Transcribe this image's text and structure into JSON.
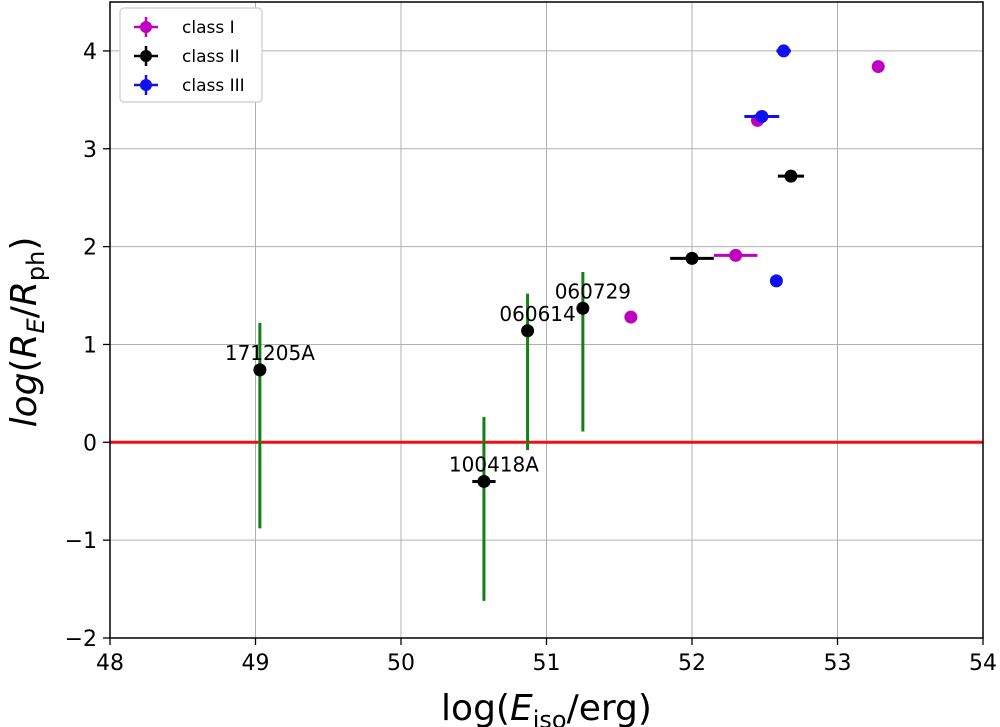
{
  "chart_data": {
    "type": "scatter",
    "xlabel": "log(E_iso/erg)",
    "ylabel": "log(R_E/R_ph)",
    "xlim": [
      48,
      54
    ],
    "ylim": [
      -2,
      4.5
    ],
    "x_ticks": [
      48,
      49,
      50,
      51,
      52,
      53,
      54
    ],
    "y_ticks": [
      -2,
      -1,
      0,
      1,
      2,
      3,
      4
    ],
    "grid": true,
    "legend_position": "top-left",
    "reference_line": {
      "y": 0,
      "color": "#ee1111"
    },
    "series": [
      {
        "name": "class I",
        "color": "#c000c0",
        "points": [
          {
            "x": 52.3,
            "y": 1.91,
            "xerr": 0.15,
            "yerr": 0.02
          },
          {
            "x": 52.45,
            "y": 3.29,
            "xerr": 0.0,
            "yerr": 0.0
          },
          {
            "x": 51.58,
            "y": 1.28,
            "xerr": 0.0,
            "yerr": 0.0
          },
          {
            "x": 53.28,
            "y": 3.84,
            "xerr": 0.0,
            "yerr": 0.0
          }
        ]
      },
      {
        "name": "class II",
        "color": "#000000",
        "points": [
          {
            "x": 49.03,
            "y": 0.74,
            "xerr": 0.0,
            "yerr": 0.0
          },
          {
            "x": 50.57,
            "y": -0.4,
            "xerr": 0.08,
            "yerr": 0.0
          },
          {
            "x": 50.87,
            "y": 1.14,
            "xerr": 0.0,
            "yerr": 0.0
          },
          {
            "x": 51.25,
            "y": 1.37,
            "xerr": 0.0,
            "yerr": 0.0
          },
          {
            "x": 52.0,
            "y": 1.88,
            "xerr": 0.15,
            "yerr": 0.0
          },
          {
            "x": 52.68,
            "y": 2.72,
            "xerr": 0.09,
            "yerr": 0.0
          }
        ]
      },
      {
        "name": "class III",
        "color": "#1010ee",
        "points": [
          {
            "x": 52.63,
            "y": 4.0,
            "xerr": 0.05,
            "yerr": 0.0
          },
          {
            "x": 52.48,
            "y": 3.33,
            "xerr": 0.12,
            "yerr": 0.0
          },
          {
            "x": 52.58,
            "y": 1.65,
            "xerr": 0.0,
            "yerr": 0.0
          }
        ]
      }
    ],
    "green_error_bars": {
      "color": "#128012",
      "bars": [
        {
          "x": 49.03,
          "ylow": -0.88,
          "yhigh": 1.22
        },
        {
          "x": 50.57,
          "ylow": -1.62,
          "yhigh": 0.26
        },
        {
          "x": 50.87,
          "ylow": -0.08,
          "yhigh": 1.52
        },
        {
          "x": 51.25,
          "ylow": 0.11,
          "yhigh": 1.74
        }
      ]
    },
    "annotations": [
      {
        "text": "171205A",
        "x": 49.03,
        "y": 0.74
      },
      {
        "text": "100418A",
        "x": 50.57,
        "y": -0.4
      },
      {
        "text": "060614",
        "x": 50.87,
        "y": 1.14
      },
      {
        "text": "060729",
        "x": 51.25,
        "y": 1.37
      }
    ]
  }
}
